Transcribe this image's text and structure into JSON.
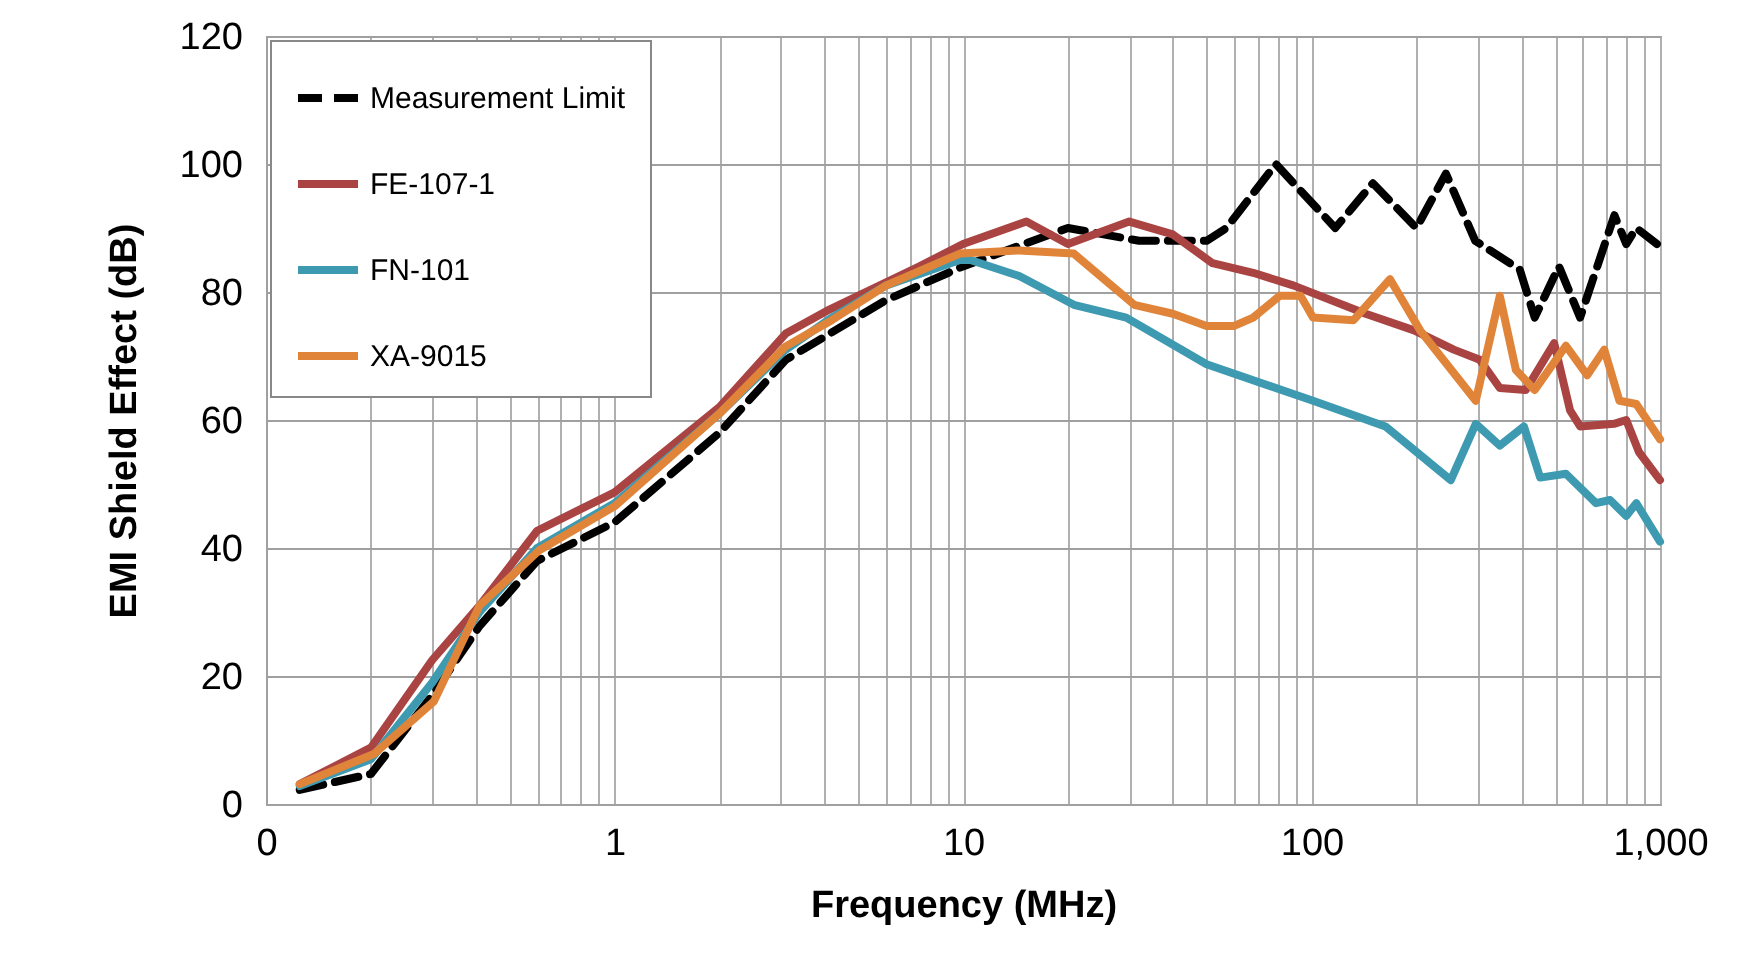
{
  "chart_data": {
    "type": "line",
    "xlabel": "Frequency (MHz)",
    "ylabel": "EMI Shield Effect (dB)",
    "log": "x",
    "xlim": [
      0.1,
      1000
    ],
    "xticks": [
      {
        "value": 0.1,
        "label": "0"
      },
      1,
      10,
      100,
      {
        "value": 1000,
        "label": "1,000"
      }
    ],
    "ylim": [
      0,
      120
    ],
    "yticks": [
      0,
      20,
      40,
      60,
      80,
      100,
      120
    ],
    "grid": true,
    "legend": "top left",
    "series": [
      {
        "name": "Measurement Limit",
        "color": "#000000",
        "line_style": "dashed",
        "x": [
          0.125,
          0.2,
          0.3,
          0.41,
          0.6,
          1,
          2,
          3.1,
          6,
          10,
          20,
          32,
          50,
          57,
          79,
          117,
          150,
          200,
          243,
          295,
          396,
          437,
          513,
          590,
          740,
          800,
          855,
          980
        ],
        "values": [
          2.2,
          4.7,
          17,
          27.8,
          38,
          44,
          58,
          69.4,
          78.7,
          84,
          90,
          88,
          88,
          90,
          100,
          90,
          97,
          90,
          98.5,
          88,
          83.5,
          76,
          84,
          76,
          92,
          87.5,
          90,
          87.5
        ]
      },
      {
        "name": "FE-107-1",
        "color": "#a94442",
        "line_style": "solid",
        "x": [
          0.125,
          0.2,
          0.3,
          0.41,
          0.6,
          1,
          2,
          3.1,
          4.05,
          7.5,
          10,
          15.2,
          20,
          30,
          40,
          52,
          68,
          89,
          143,
          197,
          256,
          304,
          347,
          412,
          497,
          552,
          590,
          738,
          800,
          870,
          1000
        ],
        "values": [
          3.1,
          8.8,
          22.5,
          31,
          42.7,
          48.7,
          62,
          73.5,
          77,
          84,
          87.5,
          91,
          87.5,
          91,
          89,
          84.5,
          83,
          81,
          76.6,
          74,
          71,
          69.4,
          65,
          64.7,
          72,
          61.5,
          59,
          59.4,
          60,
          55,
          50.6
        ]
      },
      {
        "name": "FN-101",
        "color": "#3e9ab0",
        "line_style": "solid",
        "x": [
          0.125,
          0.2,
          0.3,
          0.41,
          0.6,
          1,
          2,
          3.1,
          4.2,
          6,
          9.8,
          10.5,
          14.5,
          20.8,
          29.4,
          50,
          101,
          163,
          251,
          296,
          347,
          407,
          453,
          537,
          655,
          719,
          800,
          855,
          1000
        ],
        "values": [
          2.8,
          7,
          19,
          30,
          40,
          47,
          61,
          71,
          76,
          81,
          85,
          85,
          82.5,
          78,
          76,
          68.7,
          63,
          59,
          50.6,
          59.4,
          56,
          59,
          51,
          51.6,
          47,
          47.5,
          45,
          47,
          41
        ]
      },
      {
        "name": "XA-9015",
        "color": "#e0843a",
        "line_style": "solid",
        "x": [
          0.125,
          0.204,
          0.303,
          0.41,
          0.61,
          1,
          2,
          3.1,
          4.2,
          6,
          9.8,
          14.5,
          20.8,
          31,
          40,
          50,
          60,
          68,
          81,
          93,
          101,
          132,
          168,
          205,
          296,
          347,
          386,
          437,
          537,
          618,
          692,
          765,
          855,
          1000
        ],
        "values": [
          3.1,
          7.8,
          16,
          31,
          39.7,
          46.5,
          61,
          71.5,
          75.6,
          81,
          86,
          86.5,
          86,
          78,
          76.6,
          74.7,
          74.7,
          76,
          79.4,
          79.4,
          76,
          75.6,
          82,
          74,
          63,
          79.4,
          67.8,
          64.7,
          71.6,
          67,
          71,
          63,
          62.5,
          57
        ]
      }
    ]
  }
}
